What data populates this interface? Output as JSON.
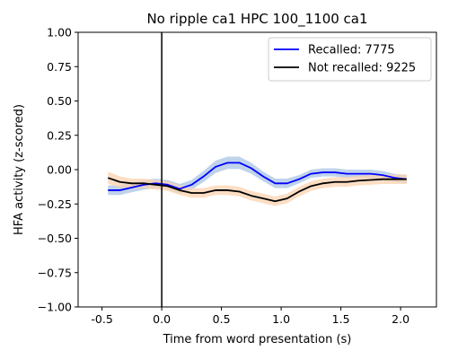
{
  "chart_data": {
    "type": "line",
    "title": "No ripple ca1 HPC 100_1100 ca1",
    "xlabel": "Time from word presentation (s)",
    "ylabel": "HFA activity (z-scored)",
    "xlim": [
      -0.7,
      2.3
    ],
    "ylim": [
      -1.0,
      1.0
    ],
    "xticks": [
      -0.5,
      0.0,
      0.5,
      1.0,
      1.5,
      2.0
    ],
    "xtick_labels": [
      "-0.5",
      "0.0",
      "0.5",
      "1.0",
      "1.5",
      "2.0"
    ],
    "yticks": [
      -1.0,
      -0.75,
      -0.5,
      -0.25,
      0.0,
      0.25,
      0.5,
      0.75,
      1.0
    ],
    "ytick_labels": [
      "−1.00",
      "−0.75",
      "−0.50",
      "−0.25",
      "0.00",
      "0.25",
      "0.50",
      "0.75",
      "1.00"
    ],
    "vline_x": 0.0,
    "grid": false,
    "legend_position": "top-right",
    "x": [
      -0.45,
      -0.35,
      -0.25,
      -0.15,
      -0.05,
      0.05,
      0.15,
      0.25,
      0.35,
      0.45,
      0.55,
      0.65,
      0.75,
      0.85,
      0.95,
      1.05,
      1.15,
      1.25,
      1.35,
      1.45,
      1.55,
      1.65,
      1.75,
      1.85,
      1.95,
      2.05
    ],
    "series": [
      {
        "name": "Recalled: 7775",
        "color": "#0000ff",
        "band_color": "#aac4e4",
        "values": [
          -0.15,
          -0.15,
          -0.13,
          -0.11,
          -0.1,
          -0.11,
          -0.14,
          -0.11,
          -0.05,
          0.02,
          0.05,
          0.05,
          0.01,
          -0.05,
          -0.1,
          -0.1,
          -0.07,
          -0.03,
          -0.02,
          -0.02,
          -0.03,
          -0.03,
          -0.03,
          -0.04,
          -0.06,
          -0.07
        ],
        "band": [
          0.035,
          0.035,
          0.035,
          0.035,
          0.035,
          0.035,
          0.035,
          0.035,
          0.04,
          0.045,
          0.045,
          0.045,
          0.04,
          0.035,
          0.035,
          0.035,
          0.03,
          0.03,
          0.03,
          0.03,
          0.03,
          0.03,
          0.03,
          0.03,
          0.03,
          0.03
        ]
      },
      {
        "name": "Not recalled: 9225",
        "color": "#000000",
        "band_color": "#fbd3b0",
        "values": [
          -0.06,
          -0.09,
          -0.1,
          -0.1,
          -0.11,
          -0.12,
          -0.15,
          -0.17,
          -0.17,
          -0.15,
          -0.15,
          -0.16,
          -0.19,
          -0.21,
          -0.23,
          -0.21,
          -0.16,
          -0.12,
          -0.1,
          -0.09,
          -0.09,
          -0.08,
          -0.075,
          -0.07,
          -0.07,
          -0.07
        ],
        "band": [
          0.045,
          0.04,
          0.035,
          0.035,
          0.035,
          0.035,
          0.035,
          0.035,
          0.035,
          0.035,
          0.035,
          0.035,
          0.035,
          0.035,
          0.035,
          0.035,
          0.035,
          0.035,
          0.035,
          0.035,
          0.035,
          0.035,
          0.035,
          0.035,
          0.035,
          0.035
        ]
      }
    ]
  }
}
